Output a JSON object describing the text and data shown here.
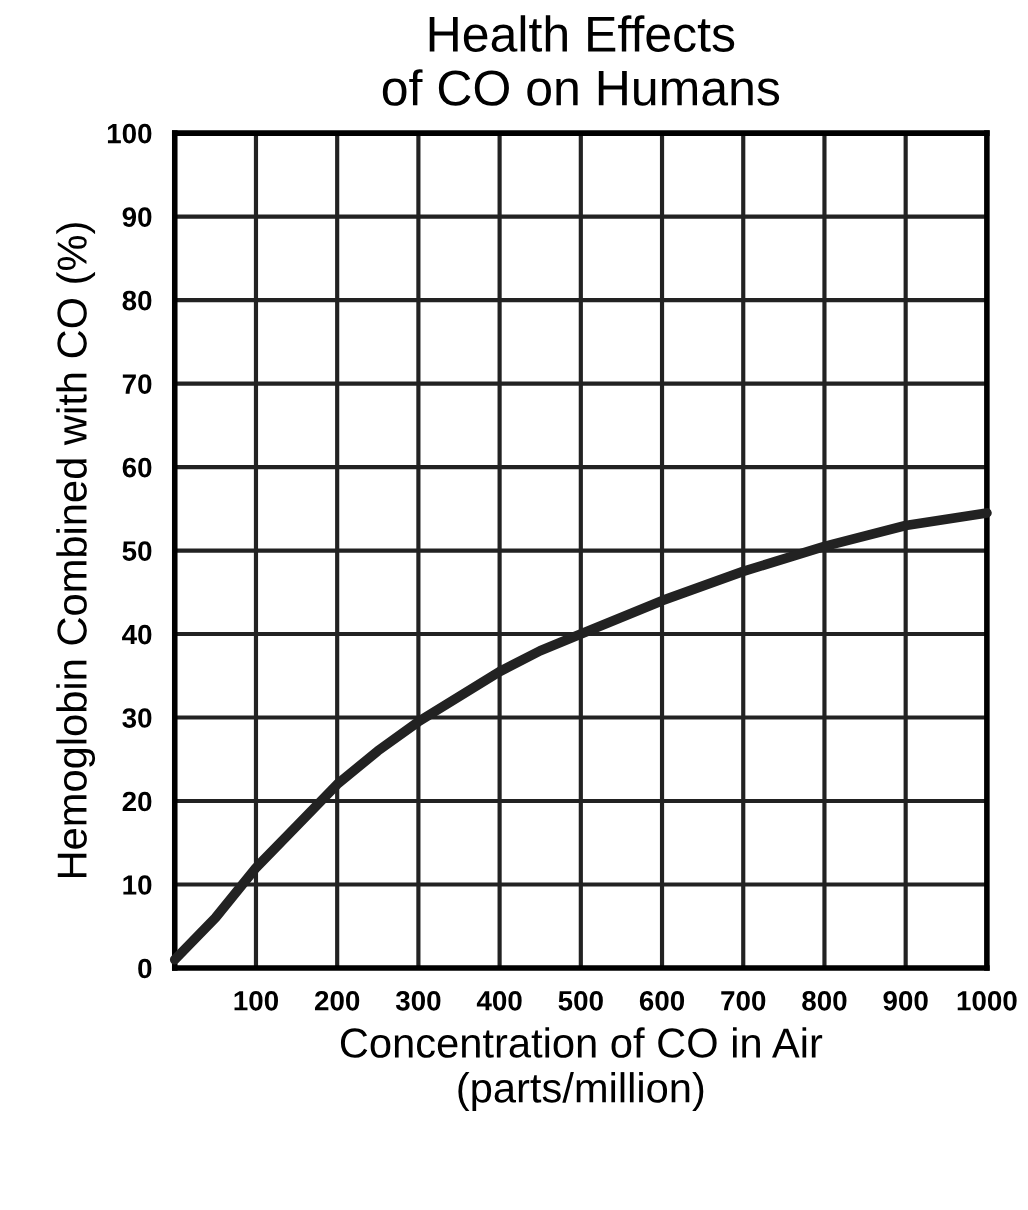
{
  "chart_data": {
    "type": "line",
    "title": "Health Effects\nof CO on Humans",
    "xlabel": "Concentration of CO in Air\n(parts/million)",
    "ylabel": "Hemoglobin Combined with CO (%)",
    "x": [
      0,
      50,
      100,
      150,
      200,
      250,
      300,
      350,
      400,
      450,
      500,
      600,
      700,
      800,
      900,
      1000
    ],
    "series": [
      {
        "color": "#222222",
        "values": [
          1,
          6,
          12,
          17,
          22,
          26,
          29.5,
          32.5,
          35.5,
          38,
          40,
          44,
          47.5,
          50.5,
          53,
          54.5
        ]
      }
    ],
    "xlim": [
      0,
      1000
    ],
    "ylim": [
      0,
      100
    ],
    "xticks": [
      100,
      200,
      300,
      400,
      500,
      600,
      700,
      800,
      900,
      1000
    ],
    "yticks": [
      0,
      10,
      20,
      30,
      40,
      50,
      60,
      70,
      80,
      90,
      100
    ],
    "grid": true,
    "marker": "none",
    "line_style": "solid"
  }
}
